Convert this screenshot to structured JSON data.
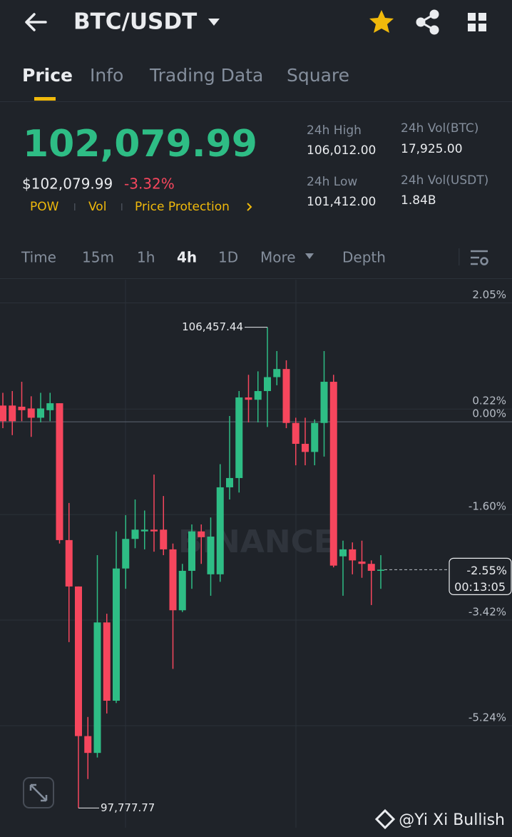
{
  "header": {
    "title": "BTC/USDT"
  },
  "tabs": [
    "Price",
    "Info",
    "Trading Data",
    "Square"
  ],
  "price": {
    "last": "102,079.99",
    "fiat": "$102,079.99",
    "change": "-3.32%",
    "tags": [
      "POW",
      "Vol",
      "Price Protection"
    ]
  },
  "stats": [
    {
      "label": "24h High",
      "value": "106,012.00"
    },
    {
      "label": "24h Vol(BTC)",
      "value": "17,925.00"
    },
    {
      "label": "24h Low",
      "value": "101,412.00"
    },
    {
      "label": "24h Vol(USDT)",
      "value": "1.84B"
    }
  ],
  "intervals": [
    "Time",
    "15m",
    "1h",
    "4h",
    "1D",
    "More",
    "Depth"
  ],
  "chart_data": {
    "type": "candlestick",
    "open": [
      0.28,
      0.28,
      0.26,
      0.23,
      0.07,
      0.2,
      0.32,
      -2.04,
      -2.84,
      -5.42,
      -5.71,
      -3.46,
      -4.81,
      -2.53,
      -2.02,
      -1.89,
      -1.86,
      -1.86,
      -2.2,
      -3.25,
      -2.57,
      -1.89,
      -2.63,
      -2.63,
      -1.13,
      -0.97,
      0.42,
      0.38,
      0.53,
      0.77,
      0.91,
      -0.02,
      -0.38,
      -0.52,
      -0.02,
      0.69,
      -2.32,
      -2.2,
      -2.41,
      -2.45,
      -2.57
    ],
    "high": [
      0.5,
      0.53,
      0.69,
      0.44,
      0.5,
      0.5,
      0.32,
      -1.4,
      -2.84,
      -5.09,
      -2.3,
      -3.31,
      -1.89,
      -1.61,
      -1.34,
      -1.53,
      -0.91,
      -1.28,
      -2.1,
      -2.45,
      -1.77,
      -1.77,
      -1.65,
      -0.73,
      0.1,
      0.53,
      0.81,
      0.87,
      1.63,
      1.22,
      1.06,
      0.07,
      0.07,
      0.04,
      1.22,
      0.81,
      -2.05,
      -2.08,
      -2.05,
      -2.39,
      -2.3
    ],
    "low": [
      -0.11,
      -0.23,
      0.01,
      -0.26,
      -0.01,
      0.01,
      -2.1,
      -3.8,
      -6.66,
      -6.16,
      -5.79,
      -5.03,
      -4.85,
      -2.88,
      -2.18,
      -2.2,
      -2.24,
      -2.3,
      -4.26,
      -3.28,
      -2.88,
      -2.45,
      -3.0,
      -2.76,
      -1.34,
      -1.22,
      -0.01,
      -0.01,
      -0.09,
      0.63,
      -0.11,
      -0.75,
      -0.75,
      -0.75,
      -0.6,
      -2.51,
      -3.0,
      -2.63,
      -2.69,
      -3.16,
      -2.88
    ],
    "close": [
      0.01,
      0.01,
      0.2,
      0.07,
      0.23,
      0.32,
      -2.04,
      -2.84,
      -5.42,
      -5.71,
      -3.46,
      -4.81,
      -2.53,
      -2.02,
      -1.86,
      -1.86,
      -1.89,
      -2.2,
      -3.25,
      -2.57,
      -1.89,
      -1.99,
      -1.98,
      -1.13,
      -0.97,
      0.42,
      0.38,
      0.53,
      0.77,
      0.91,
      -0.02,
      -0.38,
      -0.52,
      -0.02,
      0.69,
      -2.48,
      -2.2,
      -2.39,
      -2.45,
      -2.57,
      -2.55
    ],
    "up_color": "#2ebd85",
    "down_color": "#f6465d",
    "ylim": [
      -7.0,
      2.45
    ],
    "yticks": [
      {
        "value": 2.05,
        "label": "2.05%"
      },
      {
        "value": 0.22,
        "label": "0.22%"
      },
      {
        "value": 0,
        "label": "0.00%"
      },
      {
        "value": -1.6,
        "label": "-1.60%"
      },
      {
        "value": -3.42,
        "label": "-3.42%"
      },
      {
        "value": -5.24,
        "label": "-5.24%"
      }
    ],
    "grid": true,
    "max_label": "106,457.44",
    "min_label": "97,777.77",
    "current": {
      "value": -2.55,
      "label": "-2.55%",
      "countdown": "00:13:05"
    },
    "watermark": "BINANCE"
  },
  "footer": {
    "watermark": "@Yi Xi Bullish"
  }
}
